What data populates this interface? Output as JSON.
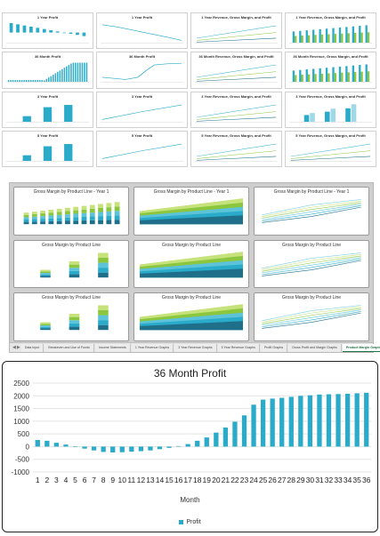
{
  "accent_color": "#29abc9",
  "thumbnails": [
    {
      "title": "1 Year Profit",
      "kind": "bars-neg"
    },
    {
      "title": "1 Year Profit",
      "kind": "line-down"
    },
    {
      "title": "1 Year Revenue, Gross Margin, and Profit",
      "kind": "lines"
    },
    {
      "title": "1 Year Revenue, Gross Margin, and Profit",
      "kind": "bars-multi"
    },
    {
      "title": "36 Month Profit",
      "kind": "bars-rise"
    },
    {
      "title": "36 Month Profit",
      "kind": "line-rise"
    },
    {
      "title": "36 Month Revenue, Gross Margin, and Profit",
      "kind": "lines"
    },
    {
      "title": "36 Month Revenue, Gross Margin, and Profit",
      "kind": "bars-multi"
    },
    {
      "title": "3 Year Profit",
      "kind": "bars-few"
    },
    {
      "title": "3 Year Profit",
      "kind": "line-up"
    },
    {
      "title": "3 Year Revenue, Gross Margin, and Profit",
      "kind": "lines"
    },
    {
      "title": "3 Year Revenue, Gross Margin, and Profit",
      "kind": "bars-group"
    },
    {
      "title": "5 Year Profit",
      "kind": "bars-few"
    },
    {
      "title": "5 Year Profit",
      "kind": "line-up"
    },
    {
      "title": "5 Year Revenue, Gross Margin, and Profit",
      "kind": "lines"
    },
    {
      "title": "5 Year Revenue, Gross Margin, and Profit",
      "kind": "lines"
    }
  ],
  "product_line_charts": [
    {
      "title": "Gross Margin by Product Line - Year 1",
      "kind": "stack-bars"
    },
    {
      "title": "Gross Margin by Product Line - Year 1",
      "kind": "stack-area"
    },
    {
      "title": "Gross Margin by Product Line - Year 1",
      "kind": "multi-lines"
    },
    {
      "title": "Gross Margin by Product Line",
      "kind": "stack-bars-few"
    },
    {
      "title": "Gross Margin by Product Line",
      "kind": "stack-area"
    },
    {
      "title": "Gross Margin by Product Line",
      "kind": "multi-lines"
    },
    {
      "title": "Gross Margin by Product Line",
      "kind": "stack-bars-few"
    },
    {
      "title": "Gross Margin by Product Line",
      "kind": "stack-area"
    },
    {
      "title": "Gross Margin by Product Line",
      "kind": "multi-lines"
    }
  ],
  "sheet_tabs": [
    "Data Input",
    "Breakeven and Use of Funds",
    "Income Statements",
    "1 Year Revenue Graphs",
    "3 Year Revenue Graphs",
    "5 Year Revenue Graphs",
    "Profit Graphs",
    "Gross Profit and Margin Graphs",
    "Product Margin Graphs"
  ],
  "active_tab": "Product Margin Graphs",
  "chart_data": {
    "type": "bar",
    "title": "36 Month Profit",
    "xlabel": "Month",
    "ylabel": "",
    "ylim": [
      -1000,
      2500
    ],
    "yticks": [
      -1000,
      -500,
      0,
      500,
      1000,
      1500,
      2000,
      2500
    ],
    "categories": [
      "1",
      "2",
      "3",
      "4",
      "5",
      "6",
      "7",
      "8",
      "9",
      "10",
      "11",
      "12",
      "13",
      "14",
      "15",
      "16",
      "17",
      "18",
      "19",
      "20",
      "21",
      "22",
      "23",
      "24",
      "25",
      "26",
      "27",
      "28",
      "29",
      "30",
      "31",
      "32",
      "33",
      "34",
      "35",
      "36"
    ],
    "series": [
      {
        "name": "Profit",
        "values": [
          260,
          230,
          150,
          80,
          -20,
          -80,
          -150,
          -210,
          -230,
          -220,
          -200,
          -180,
          -150,
          -100,
          -50,
          20,
          100,
          230,
          360,
          550,
          750,
          980,
          1230,
          1650,
          1850,
          1890,
          1920,
          1960,
          2000,
          2020,
          2050,
          2060,
          2070,
          2080,
          2100,
          2120
        ]
      }
    ],
    "legend": "bottom"
  }
}
